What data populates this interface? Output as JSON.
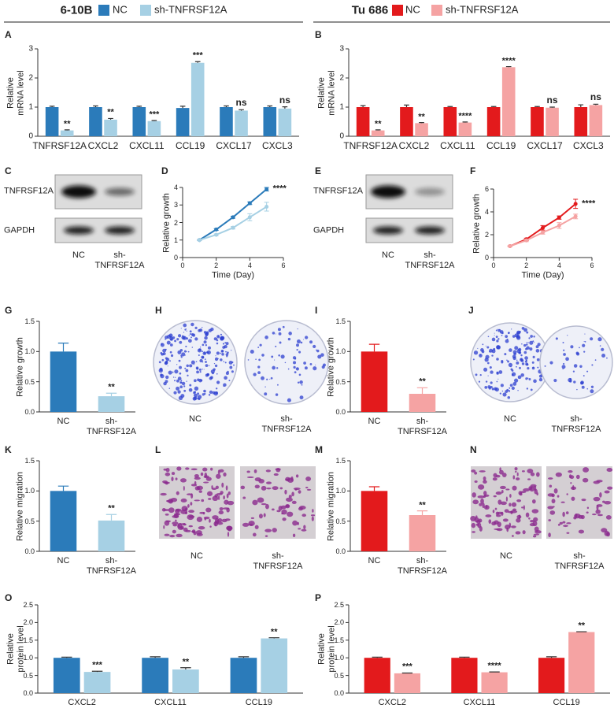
{
  "header": {
    "titles": [
      "6-10B",
      "Tu 686"
    ]
  },
  "chart_data": [
    {
      "type": "bar",
      "panel": "A",
      "ylabel": "Relative mRNA level",
      "categories": [
        "TNFRSF12A",
        "CXCL2",
        "CXCL11",
        "CCL19",
        "CXCL17",
        "CXCL3"
      ],
      "series": [
        {
          "name": "NC",
          "color": "#2b7bba",
          "values": [
            1,
            1,
            1,
            0.97,
            1,
            1
          ],
          "errors": [
            0.03,
            0.04,
            0.03,
            0.06,
            0.04,
            0.04
          ]
        },
        {
          "name": "sh-TNFRSF12A",
          "color": "#a6d0e4",
          "values": [
            0.2,
            0.57,
            0.52,
            2.52,
            0.88,
            0.95
          ],
          "errors": [
            0.02,
            0.04,
            0.02,
            0.04,
            0.03,
            0.06
          ]
        }
      ],
      "annotations": [
        "**",
        "**",
        "***",
        "***",
        "ns",
        "ns"
      ],
      "ylim": [
        0,
        3
      ],
      "yticks": [
        0,
        1,
        2,
        3
      ]
    },
    {
      "type": "bar",
      "panel": "B",
      "ylabel": "Relative mRNA level",
      "categories": [
        "TNFRSF12A",
        "CXCL2",
        "CXCL11",
        "CCL19",
        "CXCL17",
        "CXCL3"
      ],
      "series": [
        {
          "name": "NC",
          "color": "#e31a1c",
          "values": [
            1,
            1,
            1,
            1,
            1,
            1
          ],
          "errors": [
            0.05,
            0.07,
            0.02,
            0.02,
            0.02,
            0.08
          ]
        },
        {
          "name": "sh-TNFRSF12A",
          "color": "#f5a3a3",
          "values": [
            0.2,
            0.45,
            0.47,
            2.37,
            0.98,
            1.07
          ],
          "errors": [
            0.02,
            0.02,
            0.02,
            0.02,
            0.02,
            0.03
          ]
        }
      ],
      "annotations": [
        "**",
        "**",
        "****",
        "****",
        "ns",
        "ns"
      ],
      "ylim": [
        0,
        3
      ],
      "yticks": [
        0,
        1,
        2,
        3
      ]
    },
    {
      "type": "line",
      "panel": "D",
      "xlabel": "Time (Day)",
      "ylabel": "Relative growth",
      "x": [
        1,
        2,
        3,
        4,
        5
      ],
      "series": [
        {
          "color": "#2b7bba",
          "values": [
            1,
            1.6,
            2.3,
            3.1,
            3.9
          ],
          "errors": [
            0.02,
            0.05,
            0.06,
            0.08,
            0.1
          ]
        },
        {
          "color": "#a6d0e4",
          "values": [
            1,
            1.3,
            1.7,
            2.3,
            2.9
          ],
          "errors": [
            0.02,
            0.05,
            0.07,
            0.2,
            0.25
          ]
        }
      ],
      "annotation": "****",
      "xlim": [
        0,
        6
      ],
      "xticks": [
        0,
        2,
        4,
        6
      ],
      "ylim": [
        0,
        4
      ],
      "yticks": [
        0,
        1,
        2,
        3,
        4
      ]
    },
    {
      "type": "line",
      "panel": "F",
      "xlabel": "Time (Day)",
      "ylabel": "Relative growth",
      "x": [
        1,
        2,
        3,
        4,
        5
      ],
      "series": [
        {
          "color": "#e31a1c",
          "values": [
            1,
            1.6,
            2.6,
            3.5,
            4.7
          ],
          "errors": [
            0.03,
            0.1,
            0.2,
            0.15,
            0.4
          ]
        },
        {
          "color": "#f5a3a3",
          "values": [
            1,
            1.5,
            2.2,
            2.8,
            3.6
          ],
          "errors": [
            0.03,
            0.1,
            0.15,
            0.25,
            0.2
          ]
        }
      ],
      "annotation": "****",
      "xlim": [
        0,
        6
      ],
      "xticks": [
        0,
        2,
        4,
        6
      ],
      "ylim": [
        0,
        6
      ],
      "yticks": [
        0,
        2,
        4,
        6
      ]
    },
    {
      "type": "bar",
      "panel": "G",
      "ylabel": "Relative growth",
      "categories": [
        "NC",
        "sh-TNFRSF12A"
      ],
      "values": [
        1,
        0.26
      ],
      "errors": [
        0.14,
        0.05
      ],
      "colors": [
        "#2b7bba",
        "#a6d0e4"
      ],
      "annotations": [
        null,
        "**"
      ],
      "ylim": [
        0,
        1.5
      ],
      "yticks": [
        {
          "value": 0,
          "label": "0.0"
        },
        {
          "value": 0.5,
          "label": "0.5"
        },
        {
          "value": 1,
          "label": "1.0"
        },
        {
          "value": 1.5,
          "label": "1.5"
        }
      ]
    },
    {
      "type": "bar",
      "panel": "I",
      "ylabel": "Relative growth",
      "categories": [
        "NC",
        "sh-TNFRSF12A"
      ],
      "values": [
        1,
        0.3
      ],
      "errors": [
        0.12,
        0.1
      ],
      "colors": [
        "#e31a1c",
        "#f5a3a3"
      ],
      "annotations": [
        null,
        "**"
      ],
      "ylim": [
        0,
        1.5
      ],
      "yticks": [
        {
          "value": 0,
          "label": "0.0"
        },
        {
          "value": 0.5,
          "label": "0.5"
        },
        {
          "value": 1,
          "label": "1.0"
        },
        {
          "value": 1.5,
          "label": "1.5"
        }
      ]
    },
    {
      "type": "bar",
      "panel": "K",
      "ylabel": "Relative migration",
      "categories": [
        "NC",
        "sh-TNFRSF12A"
      ],
      "values": [
        1,
        0.51
      ],
      "errors": [
        0.08,
        0.1
      ],
      "colors": [
        "#2b7bba",
        "#a6d0e4"
      ],
      "annotations": [
        null,
        "**"
      ],
      "ylim": [
        0,
        1.5
      ],
      "yticks": [
        {
          "value": 0,
          "label": "0.0"
        },
        {
          "value": 0.5,
          "label": "0.5"
        },
        {
          "value": 1,
          "label": "1.0"
        },
        {
          "value": 1.5,
          "label": "1.5"
        }
      ]
    },
    {
      "type": "bar",
      "panel": "M",
      "ylabel": "Relative migration",
      "categories": [
        "NC",
        "sh-TNFRSF12A"
      ],
      "values": [
        1,
        0.6
      ],
      "errors": [
        0.07,
        0.07
      ],
      "colors": [
        "#e31a1c",
        "#f5a3a3"
      ],
      "annotations": [
        null,
        "**"
      ],
      "ylim": [
        0,
        1.5
      ],
      "yticks": [
        {
          "value": 0,
          "label": "0.0"
        },
        {
          "value": 0.5,
          "label": "0.5"
        },
        {
          "value": 1,
          "label": "1.0"
        },
        {
          "value": 1.5,
          "label": "1.5"
        }
      ]
    },
    {
      "type": "bar",
      "panel": "O",
      "ylabel": "Relative protein level",
      "categories": [
        "CXCL2",
        "CXCL11",
        "CCL19"
      ],
      "series": [
        {
          "color": "#2b7bba",
          "values": [
            1,
            1,
            1
          ],
          "errors": [
            0.02,
            0.03,
            0.03
          ]
        },
        {
          "color": "#a6d0e4",
          "values": [
            0.6,
            0.67,
            1.55
          ],
          "errors": [
            0.02,
            0.05,
            0.02
          ]
        }
      ],
      "annotations": [
        "***",
        "**",
        "**"
      ],
      "ylim": [
        0,
        2.5
      ],
      "yticks": [
        {
          "value": 0,
          "label": "0.0"
        },
        {
          "value": 0.5,
          "label": "0.5"
        },
        {
          "value": 1,
          "label": "1.0"
        },
        {
          "value": 1.5,
          "label": "1.5"
        },
        {
          "value": 2,
          "label": "2.0"
        },
        {
          "value": 2.5,
          "label": "2.5"
        }
      ]
    },
    {
      "type": "bar",
      "panel": "P",
      "ylabel": "Relative protein level",
      "categories": [
        "CXCL2",
        "CXCL11",
        "CCL19"
      ],
      "series": [
        {
          "color": "#e31a1c",
          "values": [
            1,
            1,
            1
          ],
          "errors": [
            0.02,
            0.02,
            0.03
          ]
        },
        {
          "color": "#f5a3a3",
          "values": [
            0.56,
            0.59,
            1.73
          ],
          "errors": [
            0.01,
            0.01,
            0.01
          ]
        }
      ],
      "annotations": [
        "***",
        "****",
        "**"
      ],
      "ylim": [
        0,
        2.5
      ],
      "yticks": [
        {
          "value": 0,
          "label": "0.0"
        },
        {
          "value": 0.5,
          "label": "0.5"
        },
        {
          "value": 1,
          "label": "1.0"
        },
        {
          "value": 1.5,
          "label": "1.5"
        },
        {
          "value": 2,
          "label": "2.0"
        },
        {
          "value": 2.5,
          "label": "2.5"
        }
      ]
    }
  ],
  "panels": [
    {
      "panel": "C",
      "rows": [
        "TNFRSF12A",
        "GAPDH"
      ],
      "lanes": [
        "NC",
        "sh-TNFRSF12A"
      ]
    },
    {
      "panel": "E",
      "rows": [
        "TNFRSF12A",
        "GAPDH"
      ],
      "lanes": [
        "NC",
        "sh-TNFRSF12A"
      ]
    },
    {
      "panel": "H",
      "lanes": [
        "NC",
        "sh-TNFRSF12A"
      ]
    },
    {
      "panel": "J",
      "lanes": [
        "NC",
        "sh-TNFRSF12A"
      ]
    },
    {
      "panel": "L",
      "lanes": [
        "NC",
        "sh-TNFRSF12A"
      ]
    },
    {
      "panel": "N",
      "lanes": [
        "NC",
        "sh-TNFRSF12A"
      ]
    }
  ]
}
